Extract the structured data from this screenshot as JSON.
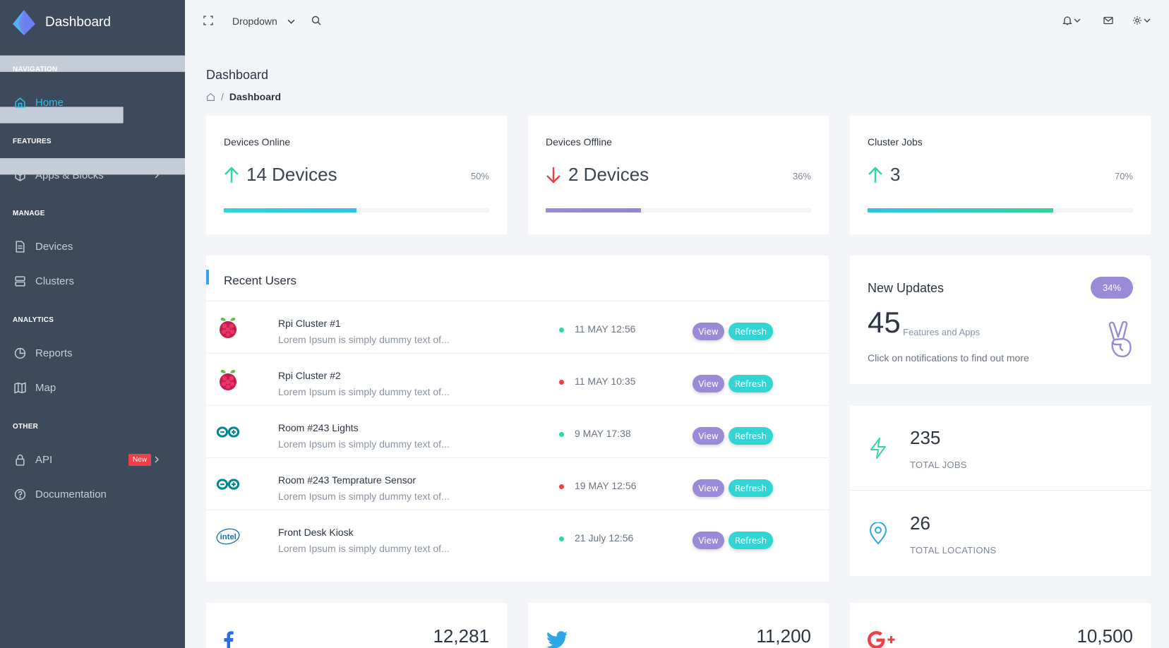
{
  "sidebar": {
    "brand": "Dashboard",
    "sections": {
      "navigation": "NAVIGATION",
      "features": "FEATURES",
      "manage": "MANAGE",
      "analytics": "ANALYTICS",
      "other": "OTHER"
    },
    "items": {
      "home": "Home",
      "apps": "Apps & Blocks",
      "devices": "Devices",
      "clusters": "Clusters",
      "reports": "Reports",
      "map": "Map",
      "api": "API",
      "api_badge": "New",
      "documentation": "Documentation"
    }
  },
  "topbar": {
    "dropdown": "Dropdown",
    "icons": [
      "expand-icon",
      "chevron-down-icon",
      "search-icon",
      "bell-icon",
      "mail-icon",
      "gear-icon"
    ]
  },
  "page": {
    "title": "Dashboard",
    "breadcrumb_current": "Dashboard",
    "breadcrumb_sep": "/"
  },
  "stats": [
    {
      "label": "Devices Online",
      "value": "14 Devices",
      "pct": "50%",
      "direction": "up",
      "progress": 0.5,
      "color_start": "#31d6d4",
      "color_end": "#2ec4e8"
    },
    {
      "label": "Devices Offline",
      "value": "2 Devices",
      "pct": "36%",
      "direction": "down",
      "progress": 0.36,
      "color_start": "#9b8ad8",
      "color_end": "#8f86d6"
    },
    {
      "label": "Cluster Jobs",
      "value": "3",
      "pct": "70%",
      "direction": "up",
      "progress": 0.7,
      "color_start": "#2ec4e8",
      "color_end": "#32d69b"
    }
  ],
  "recent_users": {
    "title": "Recent Users",
    "view_label": "View",
    "refresh_label": "Refresh",
    "rows": [
      {
        "name": "Rpi Cluster #1",
        "desc": "Lorem Ipsum is simply dummy text of...",
        "time": "11 MAY 12:56",
        "status": "online",
        "icon": "raspberry-pi-icon"
      },
      {
        "name": "Rpi Cluster #2",
        "desc": "Lorem Ipsum is simply dummy text of...",
        "time": "11 MAY 10:35",
        "status": "offline",
        "icon": "raspberry-pi-icon"
      },
      {
        "name": "Room #243 Lights",
        "desc": "Lorem Ipsum is simply dummy text of...",
        "time": "9 MAY 17:38",
        "status": "online",
        "icon": "arduino-icon"
      },
      {
        "name": "Room #243 Temprature Sensor",
        "desc": "Lorem Ipsum is simply dummy text of...",
        "time": "19 MAY 12:56",
        "status": "offline",
        "icon": "arduino-icon"
      },
      {
        "name": "Front Desk Kiosk",
        "desc": "Lorem Ipsum is simply dummy text of...",
        "time": "21 July 12:56",
        "status": "online",
        "icon": "intel-icon"
      }
    ]
  },
  "updates": {
    "title": "New Updates",
    "badge": "34%",
    "count": "45",
    "count_label": "Features and Apps",
    "note": "Click on notifications to find out more"
  },
  "totals": [
    {
      "value": "235",
      "label": "TOTAL JOBS",
      "icon": "lightning-icon"
    },
    {
      "value": "26",
      "label": "TOTAL LOCATIONS",
      "icon": "location-pin-icon"
    }
  ],
  "social": [
    {
      "value": "12,281",
      "icon": "facebook-icon"
    },
    {
      "value": "11,200",
      "icon": "twitter-icon"
    },
    {
      "value": "10,500",
      "icon": "google-plus-icon"
    }
  ],
  "colors": {
    "sidebar": "#3d4a5c",
    "accent": "#36bde3",
    "online": "#31d6a0",
    "offline": "#ef3f47",
    "view": "#9b8ad8",
    "refresh": "#31d6d4"
  }
}
